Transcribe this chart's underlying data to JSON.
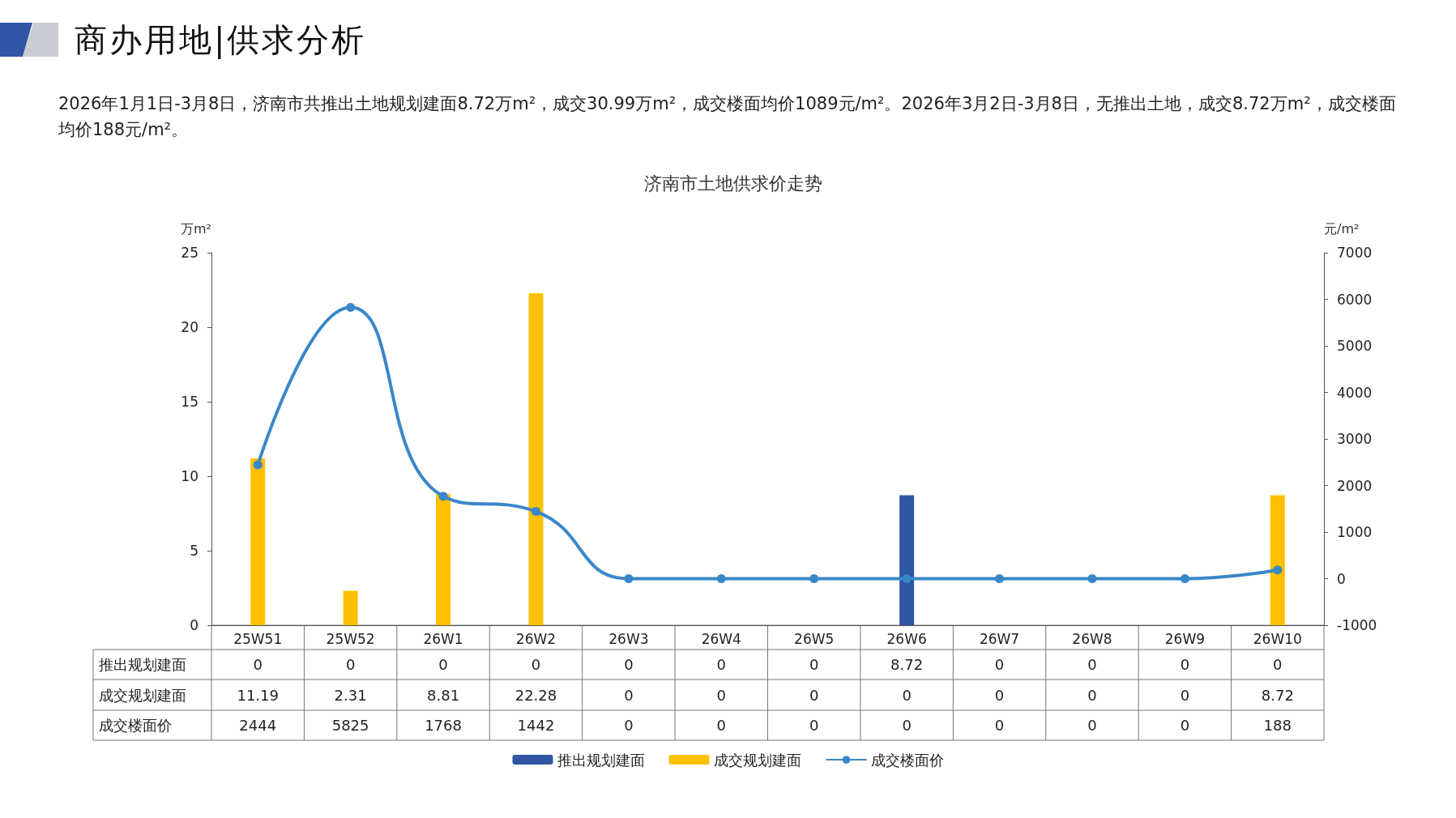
{
  "chart_data": {
    "type": "bar",
    "title": "商办用地|供求分析",
    "subtitle": "济南市土地供求价走势",
    "annotations": [
      "2026年1月1日-3月8日，济南市共推出土地规划建面8.72万m²，成交30.99万m²，成交楼面均价1089元/m²。2026年3月2日-3月8日，无推出土地，成交8.72万m²，成交楼面均价188元/m²。"
    ],
    "ylabel": "万m²",
    "y2label": "元/m²",
    "categories": [
      "25W51",
      "25W52",
      "26W1",
      "26W2",
      "26W3",
      "26W4",
      "26W5",
      "26W6",
      "26W7",
      "26W8",
      "26W9",
      "26W10"
    ],
    "series": [
      {
        "name": "推出规划建面",
        "color": "#2f55a4",
        "values": [
          0,
          0,
          0,
          0,
          0,
          0,
          0,
          8.72,
          0,
          0,
          0,
          0
        ]
      },
      {
        "name": "成交规划建面",
        "color": "#ffc000",
        "values": [
          11.19,
          2.31,
          8.81,
          22.28,
          0,
          0,
          0,
          0,
          0,
          0,
          0,
          8.72
        ]
      },
      {
        "name": "成交楼面价",
        "type": "line",
        "axis": "y2",
        "color": "#3a87c8",
        "values": [
          2444,
          5825,
          1768,
          1442,
          0,
          0,
          0,
          0,
          0,
          0,
          0,
          188
        ]
      }
    ],
    "ylim": [
      0,
      25
    ],
    "yticks": [
      0,
      5,
      10,
      15,
      20,
      25
    ],
    "y2lim": [
      -1000,
      7000
    ],
    "y2ticks": [
      -1000,
      0,
      1000,
      2000,
      3000,
      4000,
      5000,
      6000,
      7000
    ],
    "grid": false,
    "legend": "bottom",
    "marker": "circle",
    "data_labels": true
  }
}
